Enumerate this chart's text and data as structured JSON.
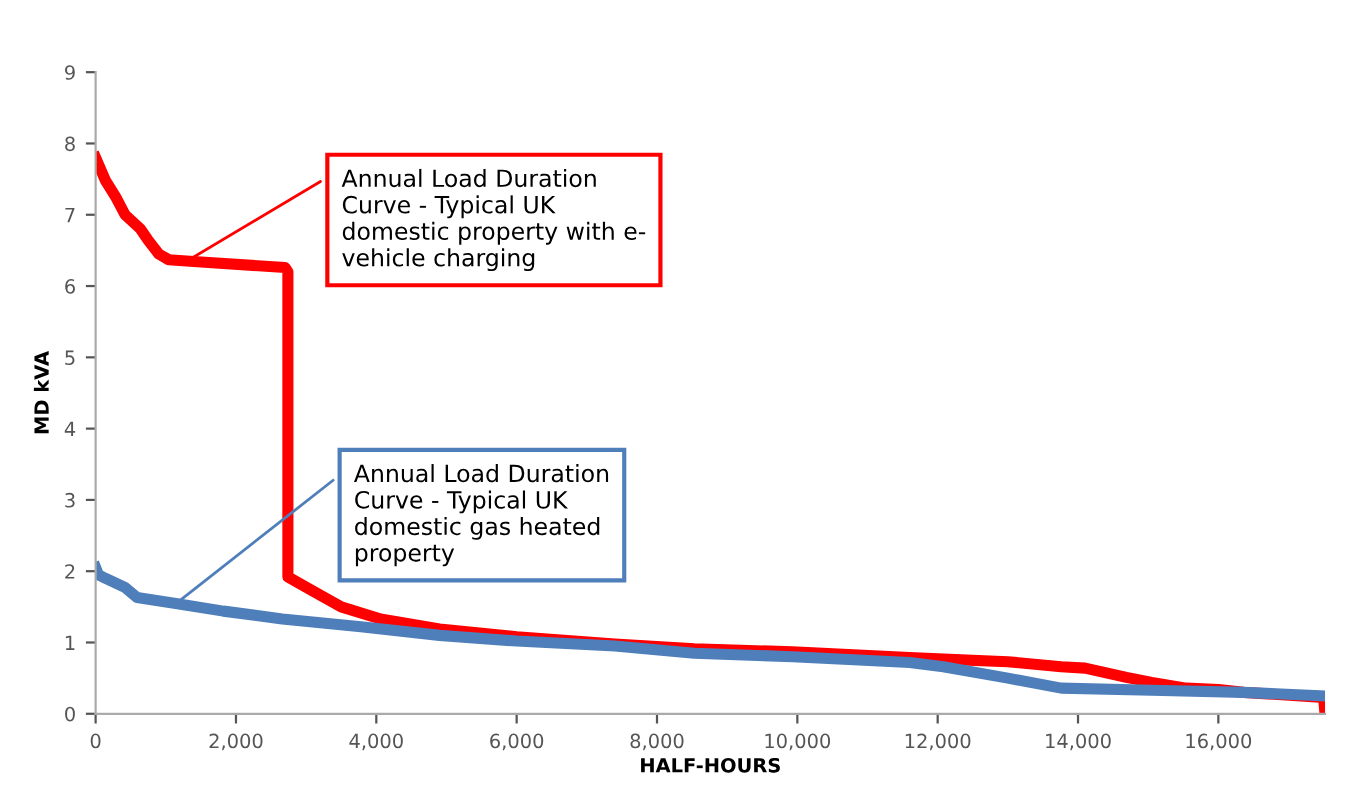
{
  "chart_data": {
    "type": "line",
    "xlabel": "HALF-HOURS",
    "ylabel": "MD kVA",
    "xlim": [
      0,
      17520
    ],
    "ylim": [
      0,
      9
    ],
    "xticks": [
      0,
      {
        "value": 2000,
        "label": "2,000"
      },
      {
        "value": 4000,
        "label": "4,000"
      },
      {
        "value": 6000,
        "label": "6,000"
      },
      {
        "value": 8000,
        "label": "8,000"
      },
      {
        "value": 10000,
        "label": "10,000"
      },
      {
        "value": 12000,
        "label": "12,000"
      },
      {
        "value": 14000,
        "label": "14,000"
      },
      {
        "value": 16000,
        "label": "16,000"
      }
    ],
    "yticks": [
      0,
      1,
      2,
      3,
      4,
      5,
      6,
      7,
      8,
      9
    ],
    "grid": false,
    "marker": "none",
    "line_style": "solid",
    "series": [
      {
        "color": "#ff0000",
        "x": [
          0,
          140,
          280,
          420,
          640,
          750,
          900,
          1040,
          1450,
          2700,
          2740,
          2740,
          3080,
          3500,
          4060,
          4900,
          6000,
          7400,
          8530,
          9930,
          11600,
          12250,
          13000,
          13760,
          14100,
          14690,
          15050,
          15540,
          16000,
          16360,
          17500,
          17520
        ],
        "values": [
          7.8,
          7.48,
          7.26,
          7.0,
          6.8,
          6.64,
          6.45,
          6.37,
          6.34,
          6.26,
          6.2,
          1.92,
          1.73,
          1.5,
          1.33,
          1.19,
          1.08,
          0.98,
          0.91,
          0.87,
          0.79,
          0.76,
          0.73,
          0.66,
          0.64,
          0.51,
          0.44,
          0.36,
          0.34,
          0.3,
          0.23,
          0
        ]
      },
      {
        "color": "#4f7fba",
        "x": [
          0,
          40,
          140,
          420,
          590,
          1120,
          1820,
          2660,
          3780,
          4900,
          6000,
          7400,
          8530,
          9930,
          11600,
          12080,
          13000,
          13760,
          15050,
          16360,
          17520
        ],
        "values": [
          2.05,
          1.95,
          1.9,
          1.77,
          1.63,
          1.55,
          1.44,
          1.33,
          1.22,
          1.1,
          1.02,
          0.95,
          0.85,
          0.8,
          0.72,
          0.66,
          0.5,
          0.36,
          0.33,
          0.3,
          0.25
        ]
      }
    ],
    "annotations": [
      {
        "text": "Annual Load Duration\nCurve - Typical UK\ndomestic property with e-\nvehicle charging",
        "x": 1300,
        "y": 6.35
      },
      {
        "text": "Annual Load Duration\nCurve - Typical UK\ndomestic gas heated\nproperty",
        "x": 1150,
        "y": 1.55
      }
    ]
  }
}
